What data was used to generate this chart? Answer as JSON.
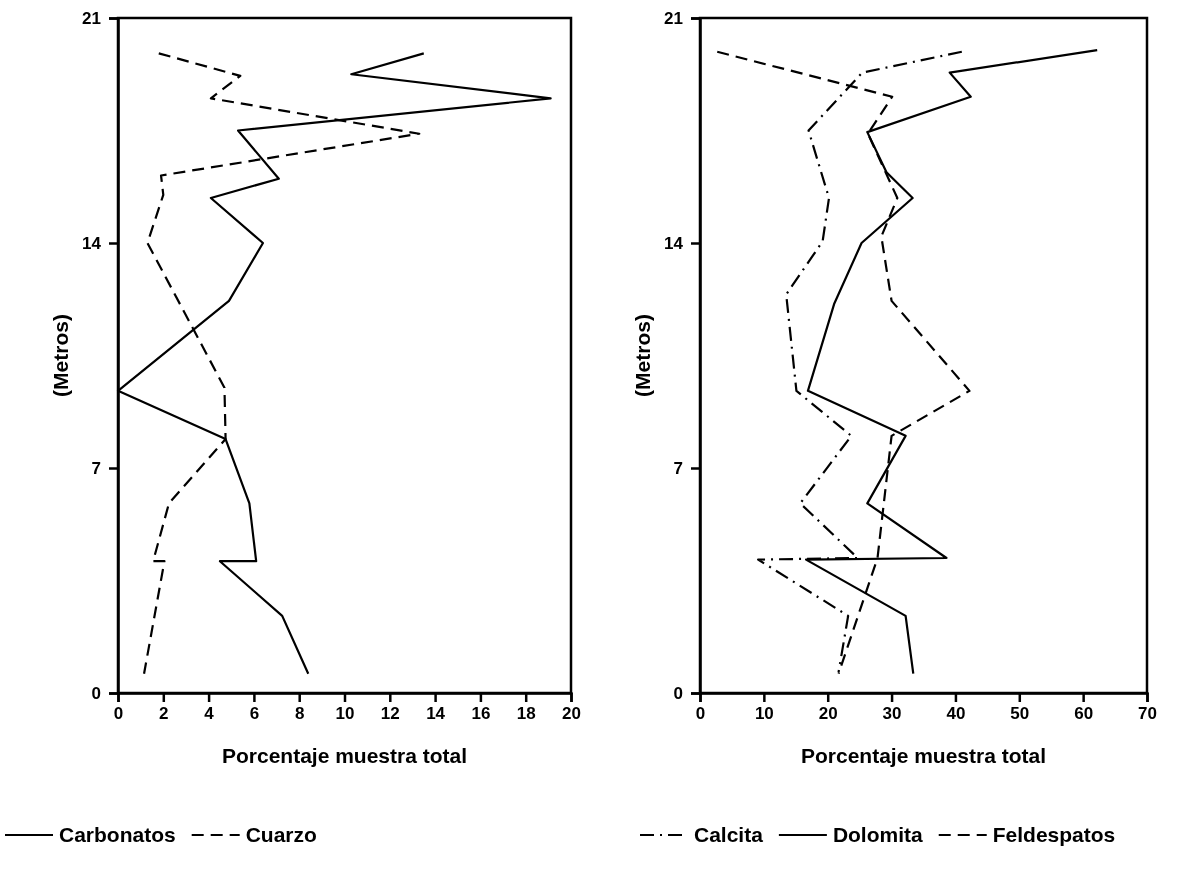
{
  "chart_data": [
    {
      "type": "line",
      "xlabel": "Porcentaje muestra total",
      "ylabel": "(Metros)",
      "xlim": [
        0,
        20
      ],
      "xticks": [
        0,
        2,
        4,
        6,
        8,
        10,
        12,
        14,
        16,
        18,
        20
      ],
      "ylim": [
        0,
        21
      ],
      "yticks": [
        0,
        7,
        14,
        21
      ],
      "grid": false,
      "legend": "bottom",
      "marker": "none",
      "series": [
        {
          "name": "Carbonatos",
          "color": "#000000",
          "line_style": "solid",
          "x": [
            13.5,
            10.3,
            19.1,
            5.3,
            7.1,
            4.1,
            6.4,
            4.9,
            0,
            4.75,
            5.8,
            6.1,
            4.5,
            7.25,
            8.4
          ],
          "values": [
            19.9,
            19.25,
            18.5,
            17.5,
            16.0,
            15.4,
            14.0,
            12.2,
            9.4,
            7.9,
            5.9,
            4.1,
            4.1,
            2.4,
            0.6
          ]
        },
        {
          "name": "Cuarzo",
          "color": "#000000",
          "line_style": "dashed",
          "x": [
            1.8,
            5.4,
            4.1,
            13.3,
            1.9,
            2.0,
            1.3,
            4.7,
            4.75,
            2.25,
            1.55,
            2.05,
            1.15
          ],
          "values": [
            19.9,
            19.2,
            18.5,
            17.4,
            16.1,
            15.5,
            14.0,
            9.5,
            7.9,
            5.9,
            4.1,
            4.1,
            0.6
          ]
        }
      ]
    },
    {
      "type": "line",
      "xlabel": "Porcentaje muestra total",
      "ylabel": "(Metros)",
      "xlim": [
        0,
        70
      ],
      "xticks": [
        0,
        10,
        20,
        30,
        40,
        50,
        60,
        70
      ],
      "ylim": [
        0,
        21
      ],
      "yticks": [
        0,
        7,
        14,
        21
      ],
      "grid": false,
      "legend": "bottom",
      "marker": "none",
      "series": [
        {
          "name": "Calcita",
          "color": "#000000",
          "line_style": "dashdot",
          "x": [
            41.0,
            25.4,
            17.0,
            20.2,
            19.2,
            13.5,
            15.1,
            23.7,
            15.7,
            24.7,
            9.1,
            23.2,
            21.7
          ],
          "values": [
            19.95,
            19.3,
            17.5,
            15.4,
            14.05,
            12.4,
            9.4,
            8.0,
            5.9,
            4.2,
            4.15,
            2.4,
            0.65
          ]
        },
        {
          "name": "Dolomita",
          "color": "#000000",
          "line_style": "solid",
          "x": [
            62.2,
            39.1,
            42.4,
            26.2,
            29.2,
            33.3,
            25.3,
            21.0,
            16.9,
            32.2,
            26.2,
            38.6,
            16.6,
            32.2,
            33.4
          ],
          "values": [
            20.0,
            19.3,
            18.55,
            17.45,
            16.2,
            15.4,
            14.0,
            12.1,
            9.4,
            8.0,
            5.9,
            4.2,
            4.15,
            2.4,
            0.6
          ]
        },
        {
          "name": "Feldespatos",
          "color": "#000000",
          "line_style": "dashed",
          "x": [
            2.7,
            30.1,
            26.3,
            30.9,
            28.4,
            30.0,
            42.2,
            30.0,
            27.8,
            21.7
          ],
          "values": [
            19.95,
            18.55,
            17.4,
            15.4,
            14.2,
            12.2,
            9.4,
            8.0,
            4.2,
            0.6
          ]
        }
      ]
    }
  ]
}
